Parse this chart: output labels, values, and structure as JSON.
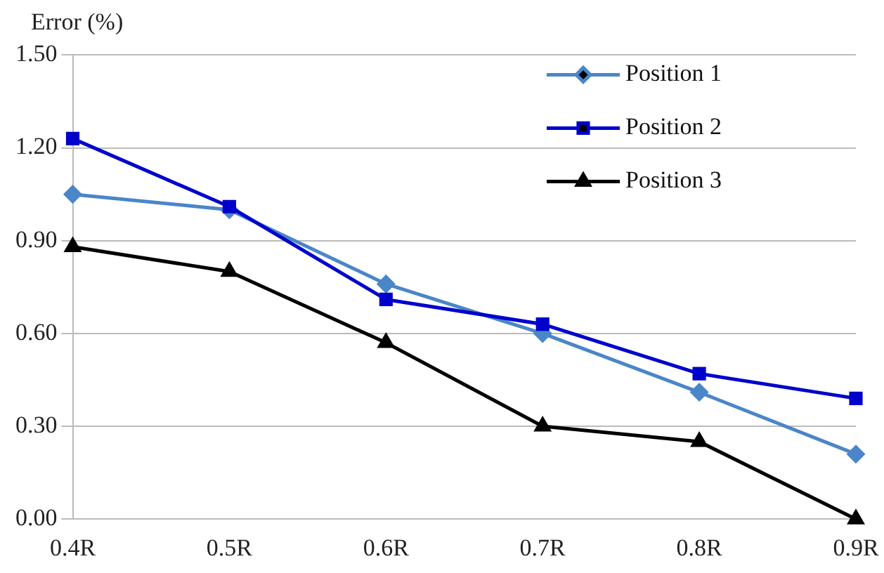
{
  "chart_data": {
    "type": "line",
    "ylabel": "Error (%)",
    "categories": [
      "0.4R",
      "0.5R",
      "0.6R",
      "0.7R",
      "0.8R",
      "0.9R"
    ],
    "series": [
      {
        "name": "Position 1",
        "color": "#4a86c8",
        "marker": "diamond",
        "values": [
          1.05,
          1.0,
          0.76,
          0.6,
          0.41,
          0.21
        ]
      },
      {
        "name": "Position 2",
        "color": "#0000cc",
        "marker": "square",
        "values": [
          1.23,
          1.01,
          0.71,
          0.63,
          0.47,
          0.39
        ]
      },
      {
        "name": "Position 3",
        "color": "#000000",
        "marker": "triangle",
        "values": [
          0.88,
          0.8,
          0.57,
          0.3,
          0.25,
          0.0
        ]
      }
    ],
    "ylim": [
      0,
      1.5
    ],
    "yticks": [
      {
        "value": 0,
        "label": "0.00"
      },
      {
        "value": 0.3,
        "label": "0.30"
      },
      {
        "value": 0.6,
        "label": "0.60"
      },
      {
        "value": 0.9,
        "label": "0.90"
      },
      {
        "value": 1.2,
        "label": "1.20"
      },
      {
        "value": 1.5,
        "label": "1.50"
      }
    ],
    "grid": "y",
    "legend": "top right",
    "line_style": "solid"
  }
}
